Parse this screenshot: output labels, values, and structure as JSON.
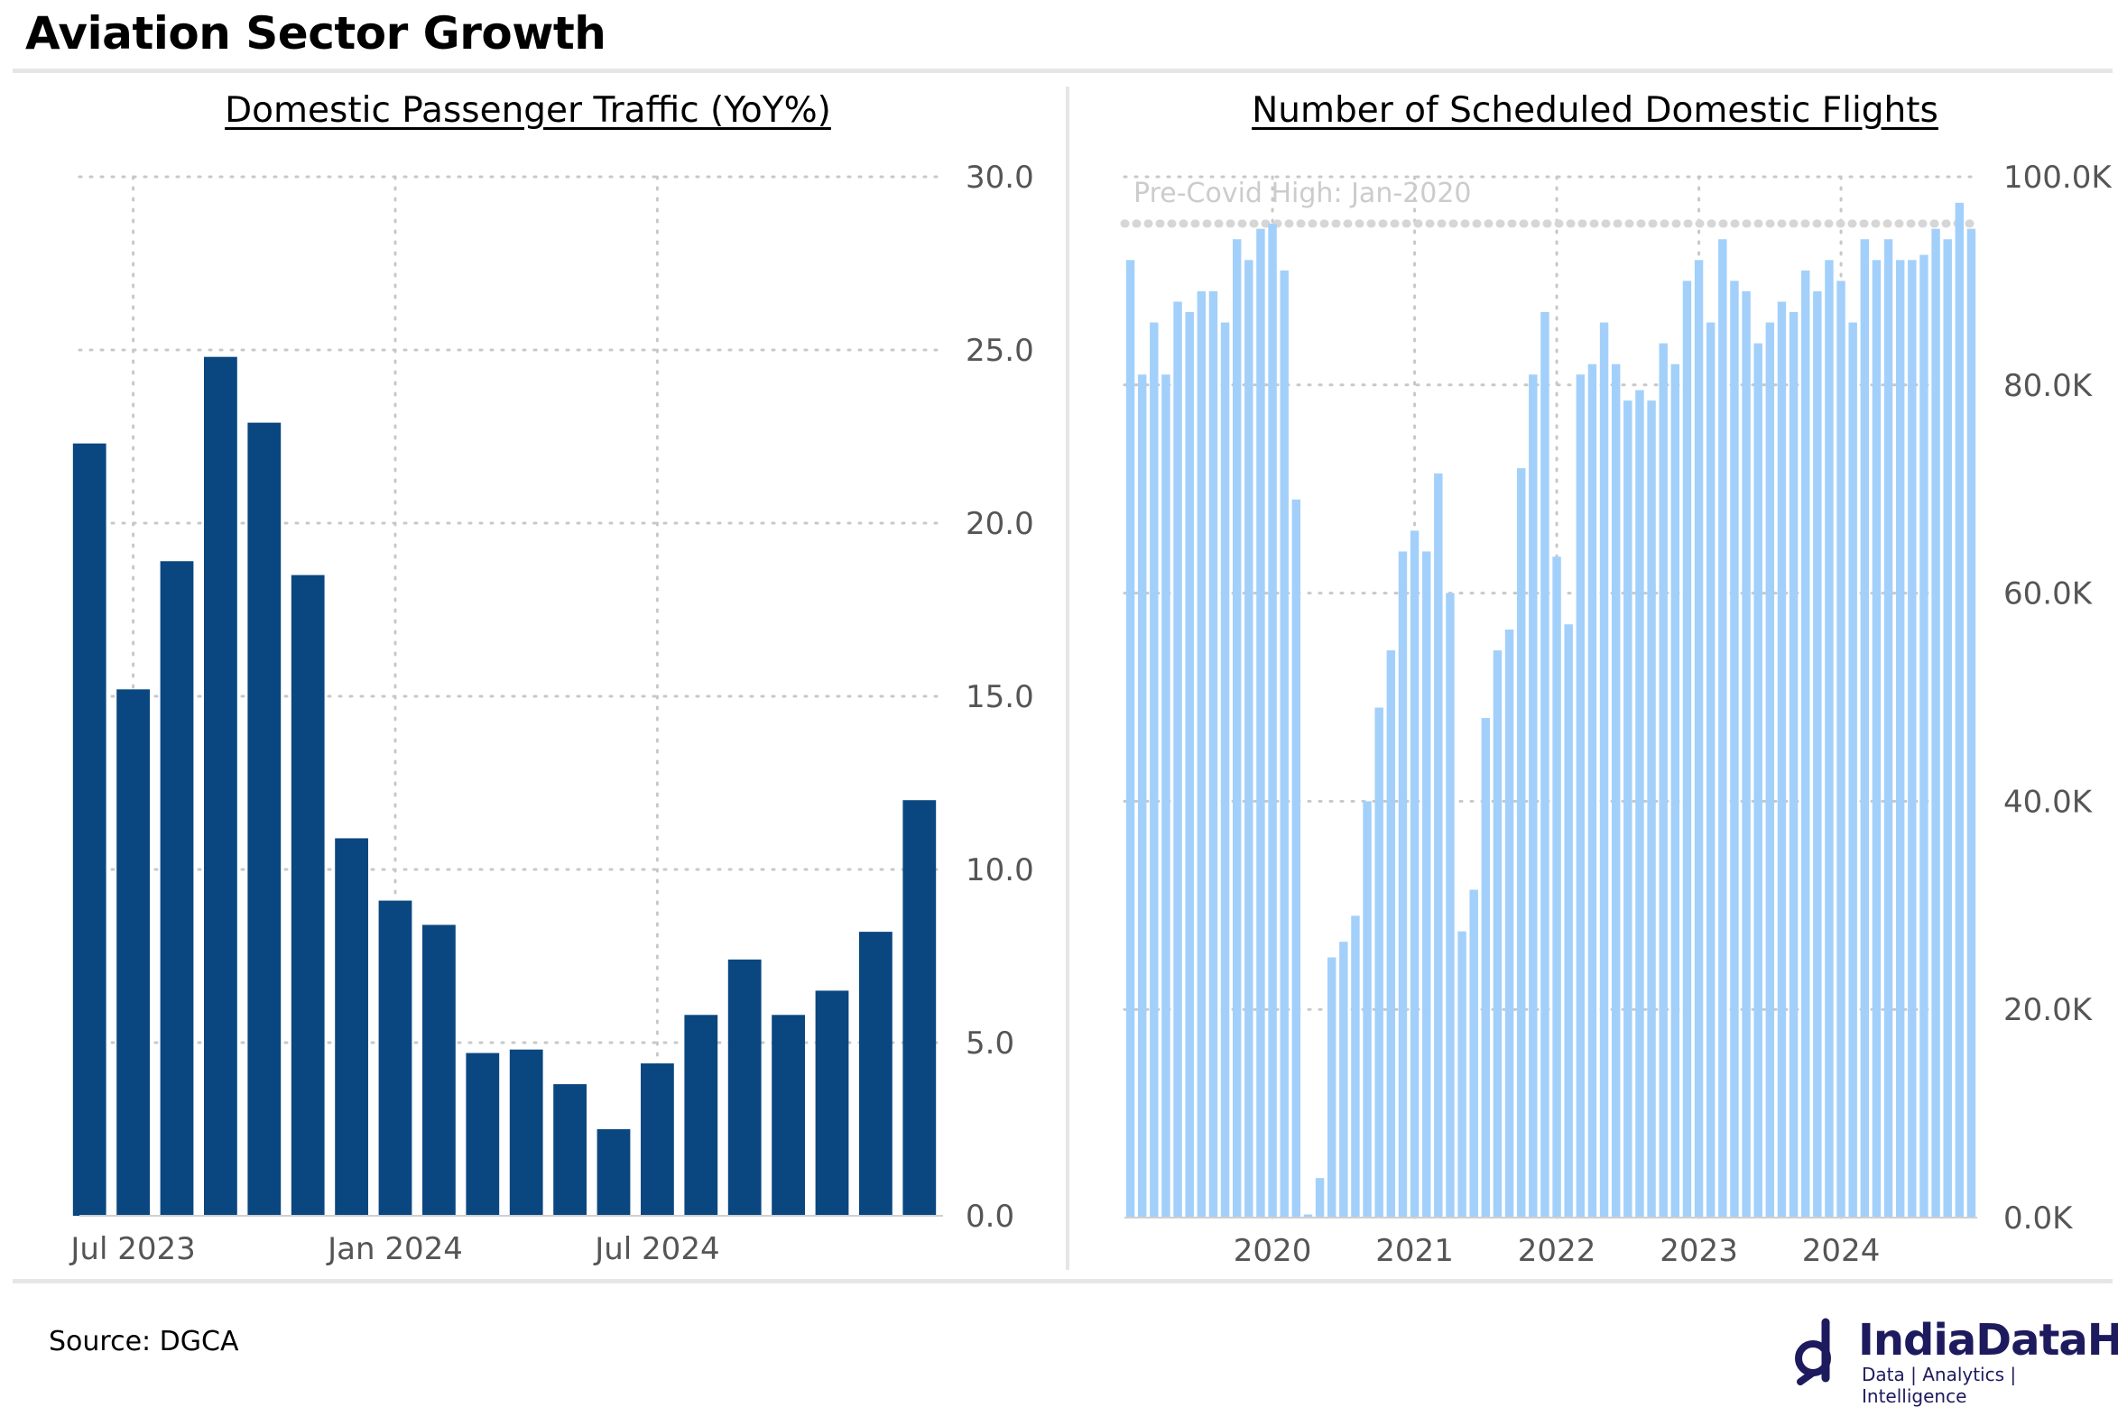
{
  "header": {
    "title": "Aviation Sector Growth"
  },
  "footer": {
    "source": "Source: DGCA"
  },
  "logo": {
    "name": "IndiaDataHub",
    "tagline": "Data | Analytics | Intelligence",
    "color": "#1e1a5e"
  },
  "chart_data": [
    {
      "type": "bar",
      "title": "Domestic Passenger Traffic (YoY%)",
      "color": "#0a4780",
      "categories": [
        "Jun 2023",
        "Jul 2023",
        "Aug 2023",
        "Sep 2023",
        "Oct 2023",
        "Nov 2023",
        "Dec 2023",
        "Jan 2024",
        "Feb 2024",
        "Mar 2024",
        "Apr 2024",
        "May 2024",
        "Jun 2024",
        "Jul 2024",
        "Aug 2024",
        "Sep 2024",
        "Oct 2024",
        "Nov 2024",
        "Dec 2024",
        "Jan 2025"
      ],
      "values": [
        22.3,
        15.2,
        18.9,
        24.8,
        22.9,
        18.5,
        10.9,
        9.1,
        8.4,
        4.7,
        4.8,
        3.8,
        2.5,
        4.4,
        5.8,
        7.4,
        5.8,
        6.5,
        8.2,
        12.0
      ],
      "xtick_labels": [
        "Jul 2023",
        "Jan 2024",
        "Jul 2024"
      ],
      "xtick_index": [
        1,
        7,
        13
      ],
      "ytick_labels": [
        "0.0",
        "5.0",
        "10.0",
        "15.0",
        "20.0",
        "25.0",
        "30.0"
      ],
      "ylim": [
        0,
        30
      ],
      "grid": true
    },
    {
      "type": "bar",
      "title": "Number of Scheduled Domestic Flights",
      "color": "#a3d0fa",
      "start": "Jan 2019",
      "values": [
        92000,
        81000,
        86000,
        81000,
        88000,
        87000,
        89000,
        89000,
        86000,
        94000,
        92000,
        95000,
        95500,
        91000,
        69000,
        300,
        3800,
        25000,
        26500,
        29000,
        40000,
        49000,
        54500,
        64000,
        66000,
        64000,
        71500,
        60000,
        27500,
        31500,
        48000,
        54500,
        56500,
        72000,
        81000,
        87000,
        63500,
        57000,
        81000,
        82000,
        86000,
        82000,
        78500,
        79500,
        78500,
        84000,
        82000,
        90000,
        92000,
        86000,
        94000,
        90000,
        89000,
        84000,
        86000,
        88000,
        87000,
        91000,
        89000,
        92000,
        90000,
        86000,
        94000,
        92000,
        94000,
        92000,
        92000,
        92500,
        95000,
        94000,
        97500,
        95000
      ],
      "xtick_labels": [
        "2020",
        "2021",
        "2022",
        "2023",
        "2024"
      ],
      "xtick_index": [
        12,
        24,
        36,
        48,
        60
      ],
      "ytick_labels": [
        "0.0K",
        "20.0K",
        "40.0K",
        "60.0K",
        "80.0K",
        "100.0K"
      ],
      "ylim": [
        0,
        100000
      ],
      "reference_line": {
        "label": "Pre-Covid High: Jan-2020",
        "value": 95500
      },
      "grid": true
    }
  ]
}
